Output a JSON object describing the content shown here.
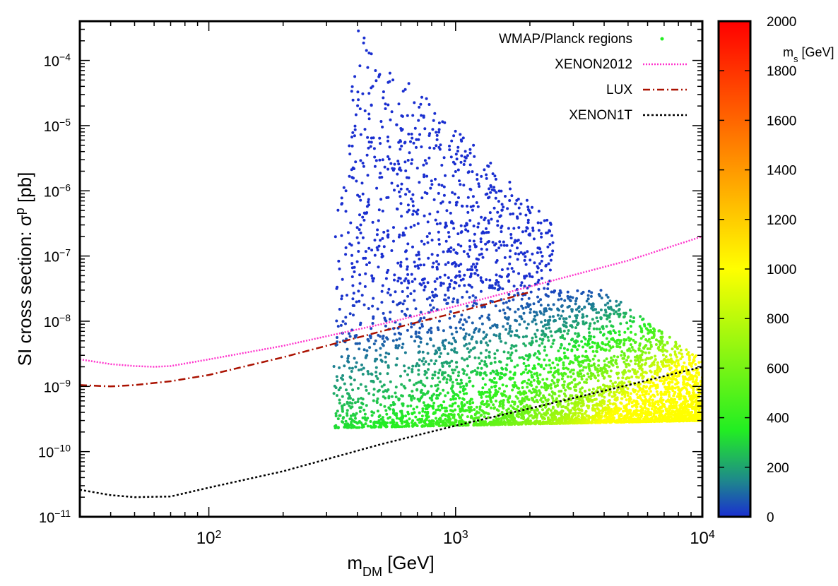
{
  "chart_data": {
    "type": "scatter",
    "xlabel": "m",
    "xlabel_sub": "DM",
    "xlabel_unit": " [GeV]",
    "ylabel": "SI cross section: σ",
    "ylabel_sup": "p",
    "ylabel_unit": " [pb]",
    "x_scale": "log",
    "y_scale": "log",
    "xlim": [
      30,
      10000
    ],
    "ylim": [
      1e-11,
      0.0004
    ],
    "x_ticks": [
      {
        "value": 100,
        "base": "10",
        "exp": "2"
      },
      {
        "value": 1000,
        "base": "10",
        "exp": "3"
      },
      {
        "value": 10000,
        "base": "10",
        "exp": "4"
      }
    ],
    "y_ticks": [
      {
        "value": 1e-11,
        "base": "10",
        "exp": "−11"
      },
      {
        "value": 1e-10,
        "base": "10",
        "exp": "−10"
      },
      {
        "value": 1e-09,
        "base": "10",
        "exp": "−9"
      },
      {
        "value": 1e-08,
        "base": "10",
        "exp": "−8"
      },
      {
        "value": 1e-07,
        "base": "10",
        "exp": "−7"
      },
      {
        "value": 1e-06,
        "base": "10",
        "exp": "−6"
      },
      {
        "value": 1e-05,
        "base": "10",
        "exp": "−5"
      },
      {
        "value": 0.0001,
        "base": "10",
        "exp": "−4"
      }
    ],
    "grid": false,
    "legend_position": "top-right",
    "legend": [
      {
        "label": "WMAP/Planck regions",
        "style": "points",
        "color": "#22ee22"
      },
      {
        "label": "XENON2012",
        "style": "dotted",
        "color": "#ff33cc"
      },
      {
        "label": "LUX",
        "style": "dash-dot",
        "color": "#aa1100"
      },
      {
        "label": "XENON1T",
        "style": "dotted",
        "color": "#000000"
      }
    ],
    "lines": [
      {
        "name": "XENON2012",
        "color": "#ff33cc",
        "dash": "2,2",
        "points": [
          [
            30,
            2.6e-09
          ],
          [
            40,
            2.2e-09
          ],
          [
            50,
            2.05e-09
          ],
          [
            60,
            2e-09
          ],
          [
            70,
            2.05e-09
          ],
          [
            100,
            2.6e-09
          ],
          [
            200,
            4.2e-09
          ],
          [
            500,
            9e-09
          ],
          [
            1000,
            1.7e-08
          ],
          [
            2000,
            3.4e-08
          ],
          [
            5000,
            8.5e-08
          ],
          [
            10000,
            2e-07
          ]
        ]
      },
      {
        "name": "LUX",
        "color": "#aa1100",
        "dash": "10,4,2,4",
        "points": [
          [
            30,
            1.05e-09
          ],
          [
            40,
            1e-09
          ],
          [
            50,
            1.05e-09
          ],
          [
            70,
            1.2e-09
          ],
          [
            100,
            1.5e-09
          ],
          [
            200,
            2.8e-09
          ],
          [
            500,
            7e-09
          ],
          [
            1000,
            1.35e-08
          ],
          [
            2000,
            2.8e-08
          ]
        ]
      },
      {
        "name": "XENON1T",
        "color": "#000000",
        "dash": "3,3",
        "points": [
          [
            30,
            2.6e-11
          ],
          [
            40,
            2.15e-11
          ],
          [
            50,
            2e-11
          ],
          [
            70,
            2.05e-11
          ],
          [
            100,
            2.8e-11
          ],
          [
            200,
            5e-11
          ],
          [
            500,
            1.3e-10
          ],
          [
            1000,
            2.5e-10
          ],
          [
            2000,
            4.6e-10
          ],
          [
            5000,
            1.05e-09
          ],
          [
            10000,
            2e-09
          ]
        ]
      }
    ],
    "scatter": {
      "name": "WMAP/Planck regions",
      "x_min": 320,
      "x_max": 10000,
      "color_quantity": "m_s [GeV]",
      "boundary": "upper envelope rises steeply near 320-400 GeV to ~3e-4 pb, falls as ~m_DM^-4 to ~3e-8 pb near 2500 GeV, plateau ~3e-8 pb to 4000 GeV, then falls to ~2.5e-9 pb at 10^4 GeV; lower envelope ~2.3e-10 pb rising to ~3e-10 pb at 10^4 GeV",
      "count": 5000
    },
    "colorbar": {
      "label": "m",
      "label_sub": "s",
      "label_unit": " [GeV]",
      "min": 0,
      "max": 2000,
      "ticks": [
        0,
        200,
        400,
        600,
        800,
        1000,
        1200,
        1400,
        1600,
        1800,
        2000
      ],
      "stops": [
        {
          "v": 0,
          "color": "#1a2fd0"
        },
        {
          "v": 150,
          "color": "#1e8a8a"
        },
        {
          "v": 350,
          "color": "#22ee22"
        },
        {
          "v": 1000,
          "color": "#ffff00"
        },
        {
          "v": 1400,
          "color": "#ff9900"
        },
        {
          "v": 2000,
          "color": "#ff0000"
        }
      ]
    }
  }
}
